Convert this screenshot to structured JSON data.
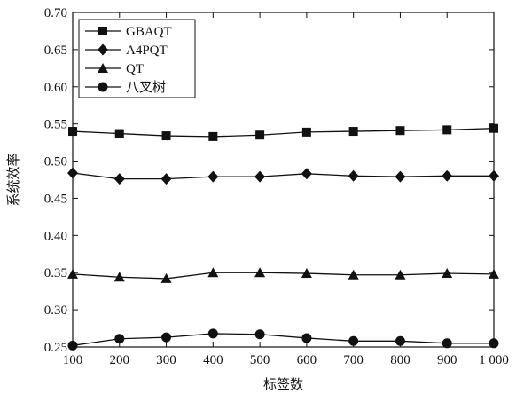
{
  "chart_data": {
    "type": "line",
    "xlabel": "标签数",
    "ylabel": "系统效率",
    "x": [
      100,
      200,
      300,
      400,
      500,
      600,
      700,
      800,
      900,
      1000
    ],
    "x_tick_labels": [
      "100",
      "200",
      "300",
      "400",
      "500",
      "600",
      "700",
      "800",
      "900",
      "1 000"
    ],
    "ylim": [
      0.25,
      0.7
    ],
    "y_ticks": [
      0.25,
      0.3,
      0.35,
      0.4,
      0.45,
      0.5,
      0.55,
      0.6,
      0.65,
      0.7
    ],
    "y_tick_labels": [
      "0.25",
      "0.30",
      "0.35",
      "0.40",
      "0.45",
      "0.50",
      "0.55",
      "0.60",
      "0.65",
      "0.70"
    ],
    "legend_position": "top-left",
    "grid": false,
    "series": [
      {
        "name": "GBAQT",
        "marker": "square",
        "values": [
          0.54,
          0.537,
          0.534,
          0.533,
          0.535,
          0.539,
          0.54,
          0.541,
          0.542,
          0.544
        ]
      },
      {
        "name": "A4PQT",
        "marker": "diamond",
        "values": [
          0.484,
          0.476,
          0.476,
          0.479,
          0.479,
          0.483,
          0.48,
          0.479,
          0.48,
          0.48
        ]
      },
      {
        "name": "QT",
        "marker": "triangle",
        "values": [
          0.348,
          0.344,
          0.342,
          0.35,
          0.35,
          0.349,
          0.347,
          0.347,
          0.349,
          0.348
        ]
      },
      {
        "name": "八叉树",
        "marker": "circle",
        "values": [
          0.252,
          0.261,
          0.263,
          0.268,
          0.267,
          0.262,
          0.258,
          0.258,
          0.255,
          0.255
        ]
      }
    ]
  }
}
